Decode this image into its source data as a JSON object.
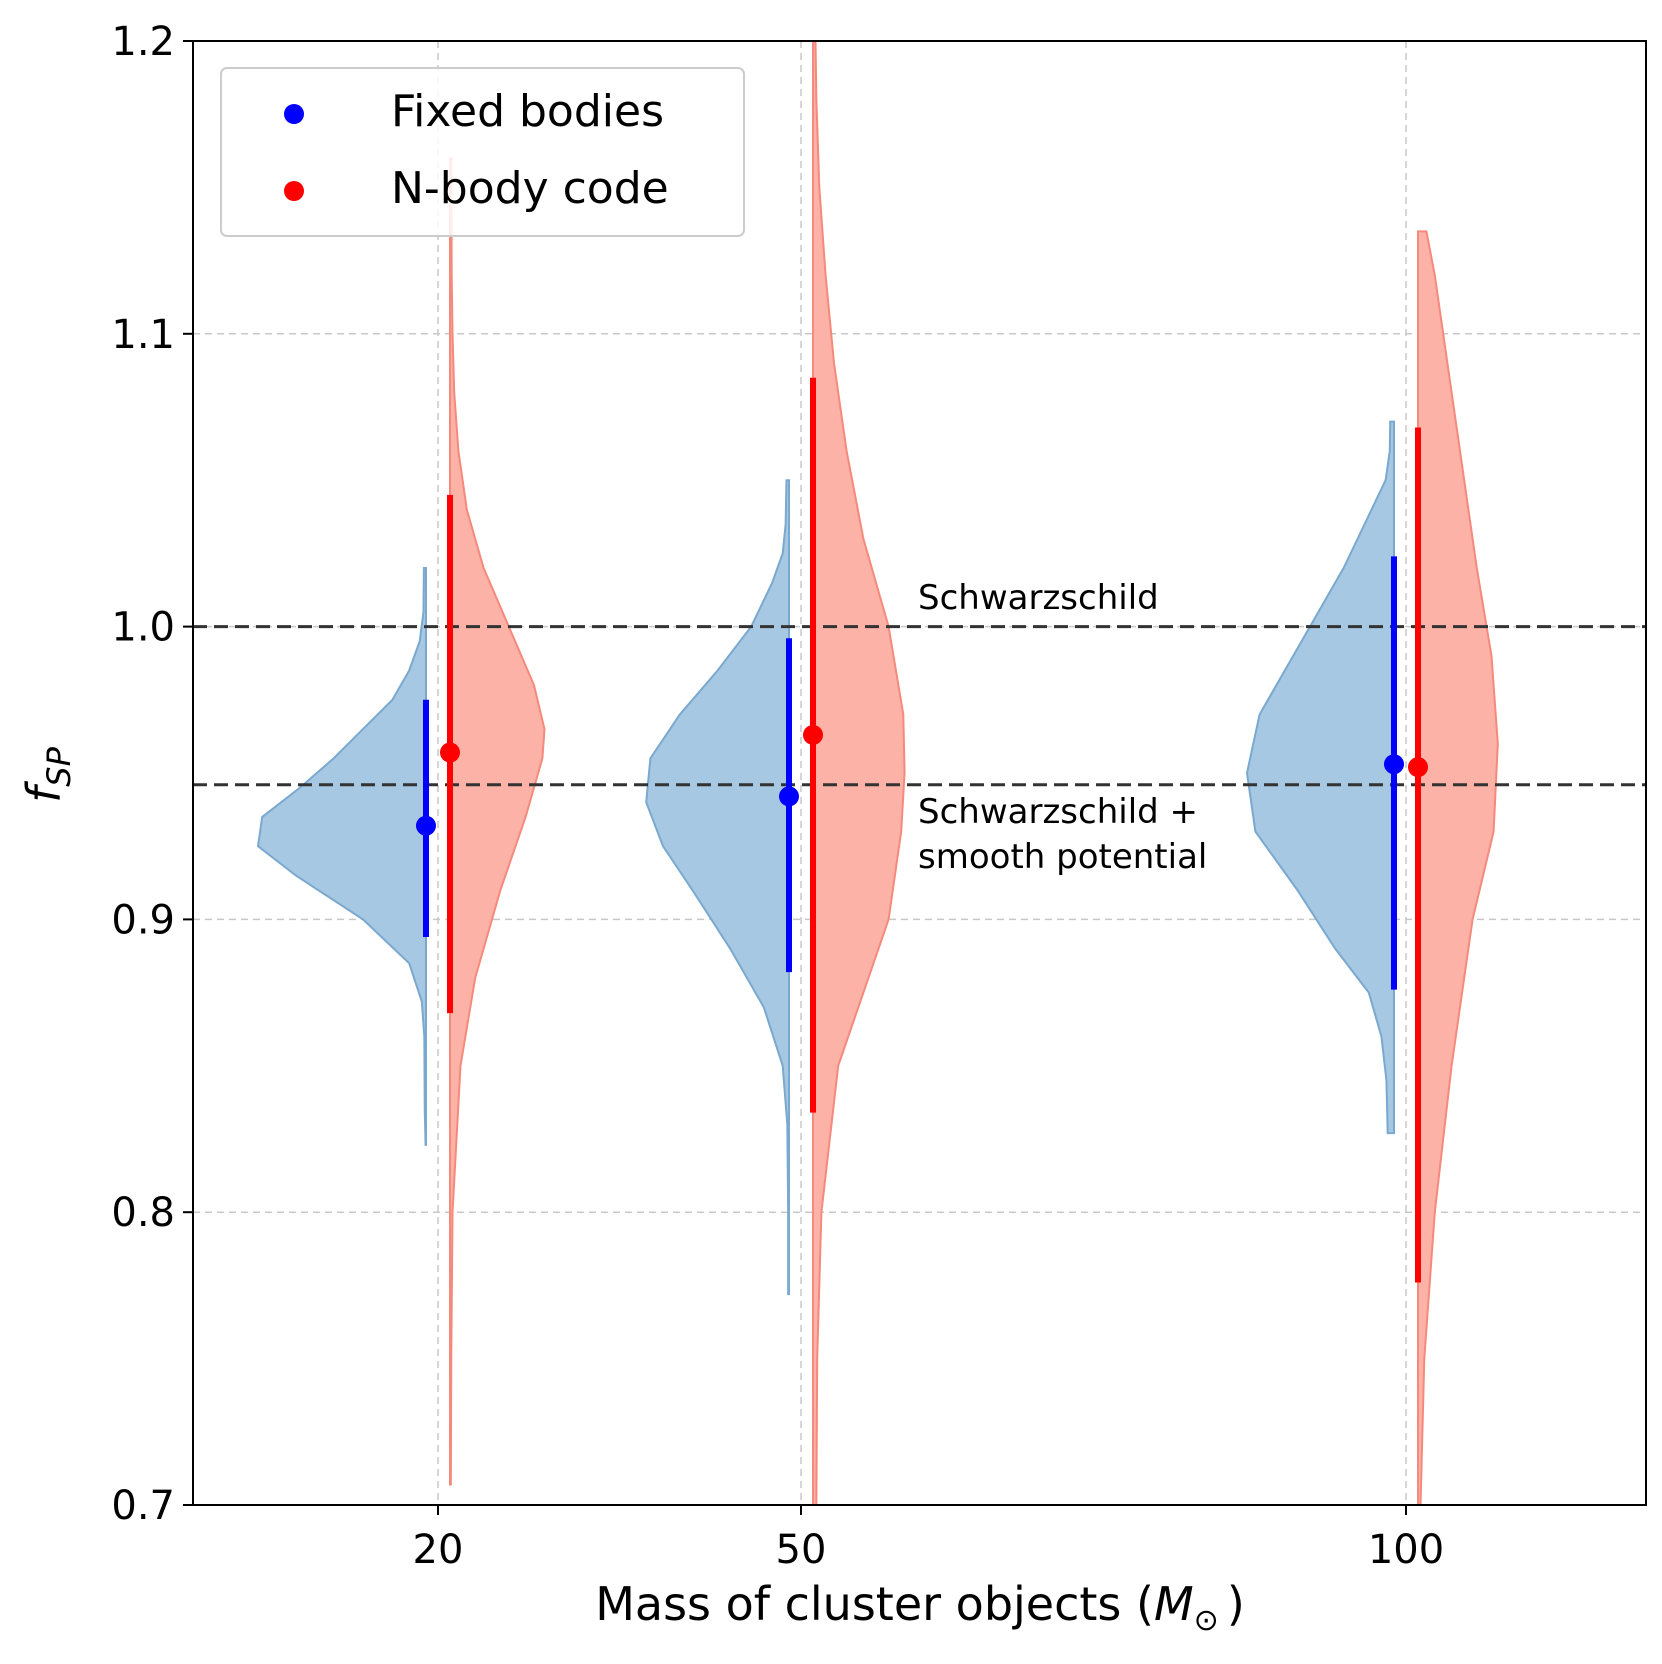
{
  "chart_data": {
    "type": "violin",
    "xlabel": "Mass of cluster objects (",
    "xlabel_math": "M",
    "xlabel_sub": "⊙",
    "xlabel_close": ")",
    "ylabel": "f",
    "ylabel_sub": "SP",
    "ylim": [
      0.7,
      1.2
    ],
    "yticks": [
      "0.7",
      "0.8",
      "0.9",
      "1.0",
      "1.1",
      "1.2"
    ],
    "grid": true,
    "categories": [
      "20",
      "50",
      "100"
    ],
    "reference_lines": [
      {
        "name": "schwarzschild",
        "value": 1.0,
        "label": "Schwarzschild"
      },
      {
        "name": "schwarzschild-smooth",
        "value": 0.946,
        "label_line1": "Schwarzschild +",
        "label_line2": "smooth potential"
      }
    ],
    "legend": [
      {
        "label": "Fixed bodies",
        "color": "#0000ff"
      },
      {
        "label": "N-body code",
        "color": "#ff0000"
      }
    ],
    "series": [
      {
        "name": "Fixed bodies",
        "color": "#0000ff",
        "fill": "#a6c8e2",
        "edge": "#7aa8cf",
        "side": "left",
        "points": [
          {
            "category": "20",
            "median": 0.932,
            "low": 0.894,
            "high": 0.975,
            "violin": [
              [
                0.823,
                0.001
              ],
              [
                0.835,
                0.003
              ],
              [
                0.86,
                0.004
              ],
              [
                0.872,
                0.01
              ],
              [
                0.885,
                0.04
              ],
              [
                0.9,
                0.15
              ],
              [
                0.915,
                0.31
              ],
              [
                0.925,
                0.4
              ],
              [
                0.935,
                0.39
              ],
              [
                0.945,
                0.3
              ],
              [
                0.955,
                0.22
              ],
              [
                0.965,
                0.15
              ],
              [
                0.975,
                0.08
              ],
              [
                0.985,
                0.04
              ],
              [
                0.995,
                0.015
              ],
              [
                1.005,
                0.006
              ],
              [
                1.02,
                0.005
              ]
            ]
          },
          {
            "category": "50",
            "median": 0.942,
            "low": 0.882,
            "high": 0.996,
            "violin": [
              [
                0.772,
                0.002
              ],
              [
                0.8,
                0.002
              ],
              [
                0.83,
                0.004
              ],
              [
                0.85,
                0.015
              ],
              [
                0.87,
                0.06
              ],
              [
                0.89,
                0.14
              ],
              [
                0.91,
                0.23
              ],
              [
                0.925,
                0.3
              ],
              [
                0.94,
                0.34
              ],
              [
                0.955,
                0.33
              ],
              [
                0.97,
                0.26
              ],
              [
                0.985,
                0.17
              ],
              [
                1.0,
                0.09
              ],
              [
                1.015,
                0.04
              ],
              [
                1.025,
                0.015
              ],
              [
                1.035,
                0.008
              ],
              [
                1.05,
                0.006
              ]
            ]
          },
          {
            "category": "100",
            "median": 0.953,
            "low": 0.876,
            "high": 1.024,
            "violin": [
              [
                0.827,
                0.015
              ],
              [
                0.845,
                0.018
              ],
              [
                0.86,
                0.03
              ],
              [
                0.875,
                0.06
              ],
              [
                0.89,
                0.14
              ],
              [
                0.91,
                0.23
              ],
              [
                0.93,
                0.33
              ],
              [
                0.95,
                0.35
              ],
              [
                0.97,
                0.32
              ],
              [
                0.99,
                0.24
              ],
              [
                1.005,
                0.18
              ],
              [
                1.02,
                0.12
              ],
              [
                1.035,
                0.07
              ],
              [
                1.05,
                0.02
              ],
              [
                1.06,
                0.01
              ],
              [
                1.07,
                0.009
              ]
            ]
          }
        ]
      },
      {
        "name": "N-body code",
        "color": "#ff0000",
        "fill": "#fcb2a6",
        "edge": "#f58a7c",
        "side": "right",
        "points": [
          {
            "category": "20",
            "median": 0.957,
            "low": 0.868,
            "high": 1.045,
            "violin": [
              [
                0.707,
                0.002
              ],
              [
                0.75,
                0.003
              ],
              [
                0.8,
                0.006
              ],
              [
                0.85,
                0.025
              ],
              [
                0.88,
                0.06
              ],
              [
                0.91,
                0.12
              ],
              [
                0.935,
                0.18
              ],
              [
                0.955,
                0.22
              ],
              [
                0.965,
                0.225
              ],
              [
                0.98,
                0.2
              ],
              [
                1.0,
                0.14
              ],
              [
                1.02,
                0.08
              ],
              [
                1.04,
                0.04
              ],
              [
                1.06,
                0.02
              ],
              [
                1.08,
                0.01
              ],
              [
                1.1,
                0.006
              ],
              [
                1.12,
                0.004
              ],
              [
                1.16,
                0.003
              ]
            ]
          },
          {
            "category": "50",
            "median": 0.963,
            "low": 0.834,
            "high": 1.085,
            "violin": [
              [
                0.7,
                0.008
              ],
              [
                0.75,
                0.01
              ],
              [
                0.8,
                0.02
              ],
              [
                0.85,
                0.06
              ],
              [
                0.9,
                0.18
              ],
              [
                0.93,
                0.21
              ],
              [
                0.95,
                0.218
              ],
              [
                0.97,
                0.215
              ],
              [
                1.0,
                0.18
              ],
              [
                1.03,
                0.12
              ],
              [
                1.06,
                0.08
              ],
              [
                1.09,
                0.05
              ],
              [
                1.12,
                0.03
              ],
              [
                1.15,
                0.015
              ],
              [
                1.18,
                0.008
              ],
              [
                1.2,
                0.006
              ]
            ]
          },
          {
            "category": "100",
            "median": 0.952,
            "low": 0.776,
            "high": 1.068,
            "violin": [
              [
                0.7,
                0.006
              ],
              [
                0.75,
                0.015
              ],
              [
                0.8,
                0.04
              ],
              [
                0.85,
                0.08
              ],
              [
                0.9,
                0.13
              ],
              [
                0.93,
                0.18
              ],
              [
                0.96,
                0.19
              ],
              [
                0.99,
                0.175
              ],
              [
                1.02,
                0.14
              ],
              [
                1.05,
                0.11
              ],
              [
                1.08,
                0.08
              ],
              [
                1.1,
                0.06
              ],
              [
                1.12,
                0.04
              ],
              [
                1.135,
                0.02
              ]
            ]
          }
        ]
      }
    ]
  }
}
